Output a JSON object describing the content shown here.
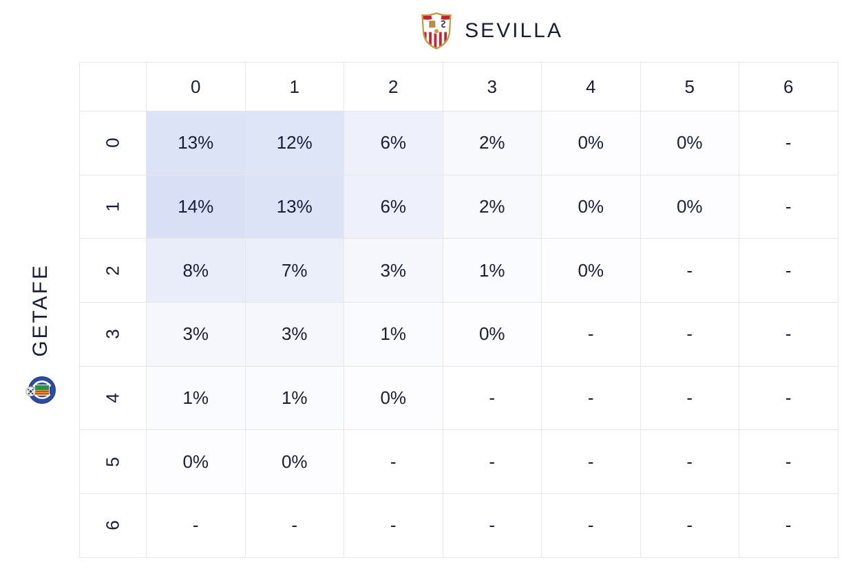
{
  "teams": {
    "top": {
      "name": "SEVILLA"
    },
    "left": {
      "name": "GETAFE"
    }
  },
  "colors": {
    "text": "#191d3a",
    "border": "#e6e6e6",
    "background": "#ffffff",
    "heat_accent": "#5b7bd6",
    "sevilla_red": "#cf1f2e",
    "sevilla_gold": "#c59a3e",
    "getafe_blue": "#2b4da1",
    "getafe_green": "#3da14a",
    "getafe_yellow": "#f6c50f"
  },
  "chart_data": {
    "type": "heatmap",
    "x_axis_label": "SEVILLA",
    "y_axis_label": "GETAFE",
    "columns": [
      "0",
      "1",
      "2",
      "3",
      "4",
      "5",
      "6"
    ],
    "rows": [
      "0",
      "1",
      "2",
      "3",
      "4",
      "5",
      "6"
    ],
    "unit": "%",
    "null_display": "-",
    "values": [
      [
        13,
        12,
        6,
        2,
        0,
        0,
        null
      ],
      [
        14,
        13,
        6,
        2,
        0,
        0,
        null
      ],
      [
        8,
        7,
        3,
        1,
        0,
        null,
        null
      ],
      [
        3,
        3,
        1,
        0,
        null,
        null,
        null
      ],
      [
        1,
        1,
        0,
        null,
        null,
        null,
        null
      ],
      [
        0,
        0,
        null,
        null,
        null,
        null,
        null
      ],
      [
        null,
        null,
        null,
        null,
        null,
        null,
        null
      ]
    ],
    "legend_position": "none",
    "grid": true
  }
}
